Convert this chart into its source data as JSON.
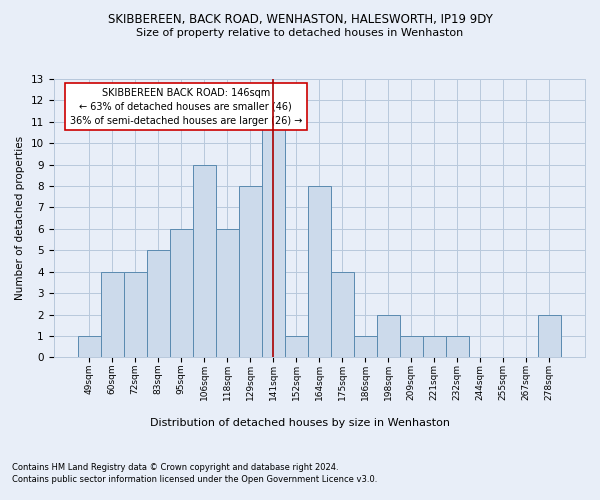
{
  "title": "SKIBBEREEN, BACK ROAD, WENHASTON, HALESWORTH, IP19 9DY",
  "subtitle": "Size of property relative to detached houses in Wenhaston",
  "xlabel_bottom": "Distribution of detached houses by size in Wenhaston",
  "ylabel": "Number of detached properties",
  "categories": [
    "49sqm",
    "60sqm",
    "72sqm",
    "83sqm",
    "95sqm",
    "106sqm",
    "118sqm",
    "129sqm",
    "141sqm",
    "152sqm",
    "164sqm",
    "175sqm",
    "186sqm",
    "198sqm",
    "209sqm",
    "221sqm",
    "232sqm",
    "244sqm",
    "255sqm",
    "267sqm",
    "278sqm"
  ],
  "values": [
    1,
    4,
    4,
    5,
    6,
    9,
    6,
    8,
    11,
    1,
    8,
    4,
    1,
    2,
    1,
    1,
    1,
    0,
    0,
    0,
    2
  ],
  "bar_color": "#ccdaeb",
  "bar_edge_color": "#5a8ab0",
  "vline_x": 8,
  "vline_color": "#aa0000",
  "annotation_title": "SKIBBEREEN BACK ROAD: 146sqm",
  "annotation_line1": "← 63% of detached houses are smaller (46)",
  "annotation_line2": "36% of semi-detached houses are larger (26) →",
  "annotation_box_color": "#ffffff",
  "annotation_box_edge": "#cc0000",
  "ylim": [
    0,
    13
  ],
  "yticks": [
    0,
    1,
    2,
    3,
    4,
    5,
    6,
    7,
    8,
    9,
    10,
    11,
    12,
    13
  ],
  "grid_color": "#b8c8dc",
  "background_color": "#e8eef8",
  "footnote1": "Contains HM Land Registry data © Crown copyright and database right 2024.",
  "footnote2": "Contains public sector information licensed under the Open Government Licence v3.0."
}
